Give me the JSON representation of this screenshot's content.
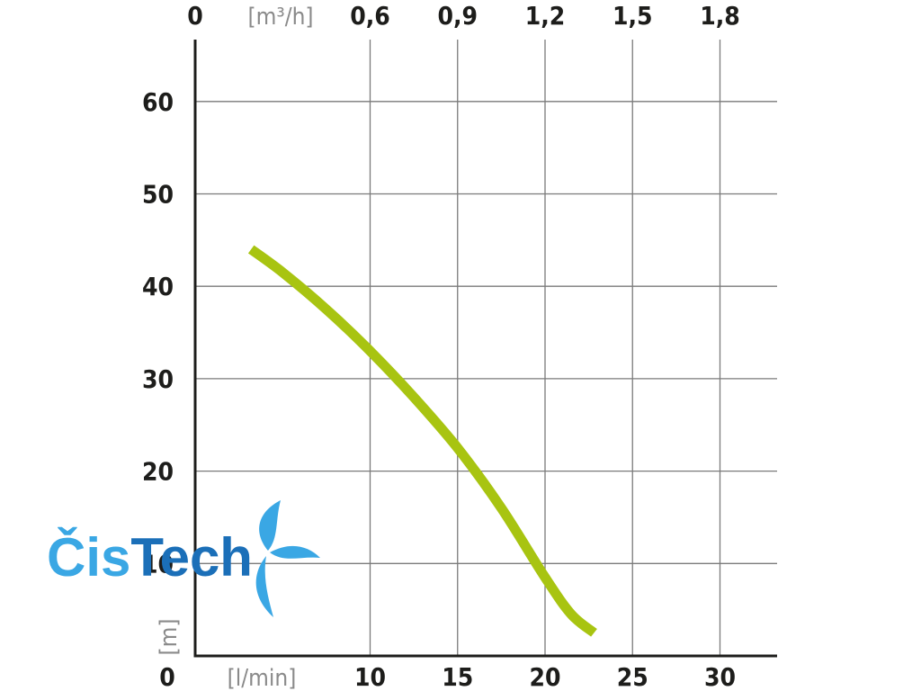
{
  "chart_data": {
    "type": "line",
    "title": "",
    "x_bottom": {
      "label": "[l/min]",
      "ticks": [
        0,
        10,
        15,
        20,
        25,
        30
      ],
      "tick_labels": [
        "0",
        "10",
        "15",
        "20",
        "25",
        "30"
      ],
      "range": [
        0,
        33
      ]
    },
    "x_top": {
      "label": "[m³/h]",
      "ticks": [
        0,
        0.6,
        0.9,
        1.2,
        1.5,
        1.8
      ],
      "tick_labels": [
        "0",
        "0,6",
        "0,9",
        "1,2",
        "1,5",
        "1,8"
      ]
    },
    "y": {
      "label": "[m]",
      "ticks": [
        10,
        20,
        30,
        40,
        50,
        60
      ],
      "tick_labels": [
        "10",
        "20",
        "30",
        "40",
        "50",
        "60"
      ],
      "range": [
        0,
        67
      ]
    },
    "grid": true,
    "series": [
      {
        "x": [
          3.2,
          5,
          7.5,
          10,
          12.5,
          15,
          17.5,
          20,
          21.5,
          22.8
        ],
        "y": [
          44,
          41.5,
          37.5,
          33,
          28,
          22.5,
          16,
          8.5,
          4.5,
          2.5
        ],
        "color": "#a8c411"
      }
    ]
  },
  "logo": {
    "text_part1": "Čis",
    "text_part2": "Tech",
    "color_light": "#3aa7e4",
    "color_dark": "#1b6fb8"
  }
}
